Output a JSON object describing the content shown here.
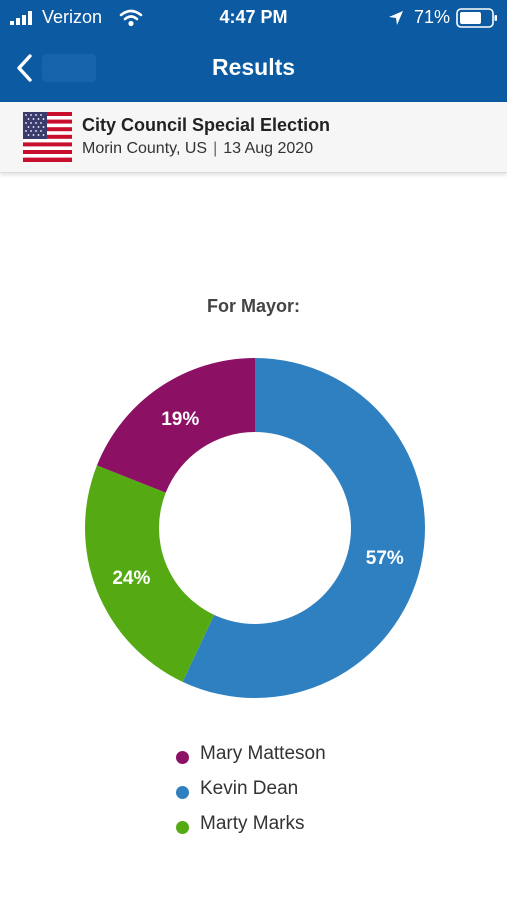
{
  "status_bar": {
    "carrier": "Verizon",
    "time": "4:47 PM",
    "battery": "71%"
  },
  "nav": {
    "title": "Results"
  },
  "election": {
    "name": "City Council Special Election",
    "location": "Morin County, US",
    "separator": "|",
    "date": "13 Aug 2020"
  },
  "chart_data": {
    "type": "pie",
    "title": "For Mayor:",
    "categories": [
      "Kevin Dean",
      "Marty Marks",
      "Mary Matteson"
    ],
    "values": [
      57,
      24,
      19
    ],
    "labels": [
      "57%",
      "24%",
      "19%"
    ],
    "colors": [
      "#2f80c1",
      "#55aa13",
      "#8c1165"
    ],
    "start_angle_deg": 0,
    "direction": "clockwise",
    "donut": true
  },
  "legend": [
    {
      "label": "Mary Matteson",
      "color": "#8c1165"
    },
    {
      "label": "Kevin Dean",
      "color": "#2f80c1"
    },
    {
      "label": "Marty Marks",
      "color": "#55aa13"
    }
  ]
}
